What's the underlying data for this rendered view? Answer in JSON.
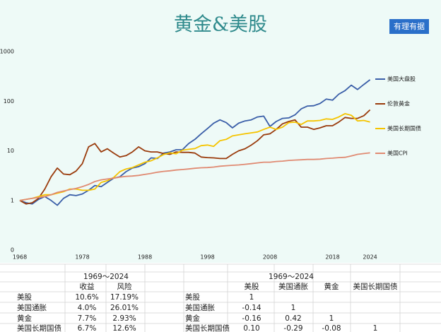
{
  "chart_data": {
    "type": "line",
    "title": "黄金&美股",
    "badge": "有理有据",
    "log_scale": true,
    "legend": "right",
    "xlim": [
      1968,
      2026
    ],
    "xticks": [
      1968,
      1978,
      1988,
      1998,
      2008,
      2018,
      2024
    ],
    "ylim": [
      0.1,
      1000
    ],
    "yticks": [
      {
        "value": 0.1,
        "label": "0"
      },
      1,
      10,
      100,
      1000
    ],
    "x": [
      1968,
      1969,
      1970,
      1971,
      1972,
      1973,
      1974,
      1975,
      1976,
      1977,
      1978,
      1979,
      1980,
      1981,
      1982,
      1983,
      1984,
      1985,
      1986,
      1987,
      1988,
      1989,
      1990,
      1991,
      1992,
      1993,
      1994,
      1995,
      1996,
      1997,
      1998,
      1999,
      2000,
      2001,
      2002,
      2003,
      2004,
      2005,
      2006,
      2007,
      2008,
      2009,
      2010,
      2011,
      2012,
      2013,
      2014,
      2015,
      2016,
      2017,
      2018,
      2019,
      2020,
      2021,
      2022,
      2023,
      2024
    ],
    "series": [
      {
        "name": "美国大盘股",
        "color": "#3a5ea8",
        "values": [
          1,
          0.9,
          0.85,
          1.05,
          1.2,
          1.0,
          0.8,
          1.1,
          1.3,
          1.25,
          1.35,
          1.6,
          2.0,
          1.9,
          2.3,
          2.8,
          3.0,
          3.8,
          4.5,
          4.8,
          5.5,
          7.2,
          7.0,
          9.0,
          9.5,
          10.5,
          10.5,
          14,
          17,
          22,
          28,
          36,
          42,
          37,
          29,
          36,
          40,
          42,
          48,
          50,
          31,
          39,
          45,
          46,
          53,
          70,
          80,
          81,
          90,
          110,
          105,
          138,
          163,
          210,
          172,
          217,
          270
        ]
      },
      {
        "name": "伦敦黄金",
        "color": "#9a3b0c",
        "values": [
          1,
          0.85,
          0.9,
          1.1,
          1.7,
          3.0,
          4.5,
          3.4,
          3.3,
          3.9,
          5.5,
          12,
          14,
          9.5,
          11,
          9,
          7.5,
          8,
          9.5,
          12,
          10,
          9.5,
          9.5,
          8.8,
          8.5,
          9.5,
          9.3,
          9.3,
          9,
          7.5,
          7.3,
          7.2,
          7,
          7,
          8.5,
          10,
          11,
          13,
          16,
          21,
          22,
          27,
          35,
          39,
          42,
          30,
          30,
          27,
          29,
          32,
          32,
          38,
          47,
          45,
          45,
          51,
          67
        ]
      },
      {
        "name": "美国长期国债",
        "color": "#f5c400",
        "values": [
          1,
          1.05,
          1.1,
          1.2,
          1.3,
          1.3,
          1.4,
          1.5,
          1.7,
          1.7,
          1.6,
          1.6,
          1.7,
          2.3,
          2.5,
          2.9,
          3.8,
          4.3,
          4.6,
          5.2,
          5.9,
          6.3,
          7.2,
          8.4,
          9.1,
          8.7,
          10.3,
          10.7,
          11.1,
          12.7,
          13.1,
          12.3,
          16,
          17,
          20,
          21,
          22,
          23,
          24,
          27,
          30,
          27,
          30,
          37,
          38,
          34,
          40,
          40,
          41,
          44,
          43,
          48,
          56,
          52,
          40,
          41,
          38
        ]
      },
      {
        "name": "美国CPI",
        "color": "#e08a72",
        "values": [
          1,
          1.05,
          1.1,
          1.15,
          1.2,
          1.3,
          1.45,
          1.55,
          1.65,
          1.75,
          1.9,
          2.1,
          2.4,
          2.6,
          2.7,
          2.8,
          2.95,
          3.05,
          3.1,
          3.2,
          3.35,
          3.5,
          3.7,
          3.85,
          3.95,
          4.1,
          4.2,
          4.3,
          4.45,
          4.55,
          4.6,
          4.7,
          4.9,
          5.0,
          5.1,
          5.2,
          5.35,
          5.5,
          5.7,
          5.9,
          5.9,
          6.1,
          6.2,
          6.4,
          6.5,
          6.6,
          6.7,
          6.7,
          6.8,
          7.0,
          7.1,
          7.3,
          7.4,
          7.9,
          8.5,
          8.8,
          9.1
        ]
      }
    ]
  },
  "tables": [
    {
      "period": "1969～2024",
      "columns": [
        "收益",
        "风险"
      ],
      "rows": [
        {
          "label": "美股",
          "cells": [
            "10.6%",
            "17.19%"
          ]
        },
        {
          "label": "美国通胀",
          "cells": [
            "4.0%",
            "26.01%"
          ]
        },
        {
          "label": "黄金",
          "cells": [
            "7.7%",
            "2.93%"
          ]
        },
        {
          "label": "美国长期国债",
          "cells": [
            "6.7%",
            "12.6%"
          ]
        }
      ]
    },
    {
      "period": "1969～2024",
      "columns": [
        "美股",
        "美国通胀",
        "黄金",
        "美国长期国债"
      ],
      "rows": [
        {
          "label": "美股",
          "cells": [
            "1"
          ]
        },
        {
          "label": "美国通胀",
          "cells": [
            "-0.14",
            "1"
          ]
        },
        {
          "label": "黄金",
          "cells": [
            "-0.16",
            "0.42",
            "1"
          ]
        },
        {
          "label": "美国长期国债",
          "cells": [
            "0.10",
            "-0.29",
            "-0.08",
            "1"
          ]
        }
      ]
    }
  ]
}
